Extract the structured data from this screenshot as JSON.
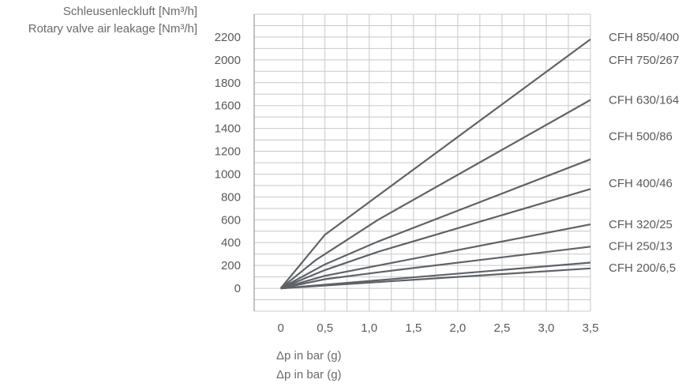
{
  "chart_data": {
    "type": "line",
    "ylabel": [
      "Schleusenleckluft [Nm³/h]",
      "Rotary valve air leakage [Nm³/h]"
    ],
    "xlabel": [
      "Δp in bar (g)",
      "Δp in bar (g)"
    ],
    "xlim": [
      -0.3,
      3.5
    ],
    "ylim": [
      -200,
      2400
    ],
    "x_ticks": [
      0,
      0.5,
      1.0,
      1.5,
      2.0,
      2.5,
      3.0,
      3.5
    ],
    "x_tick_labels": [
      "0",
      "0,5",
      "1,0",
      "1,5",
      "2,0",
      "2,5",
      "3,0",
      "3,5"
    ],
    "y_ticks": [
      0,
      200,
      400,
      600,
      800,
      1000,
      1200,
      1400,
      1600,
      1800,
      2000,
      2200
    ],
    "y_tick_labels": [
      "0",
      "200",
      "400",
      "600",
      "800",
      "1000",
      "1200",
      "1400",
      "1600",
      "1800",
      "2000",
      "2200"
    ],
    "grid": true,
    "line_color": "#5f6368",
    "grid_color": "#c8c8c8",
    "series": [
      {
        "name": "CFH 850/400",
        "x": [
          0,
          0.5,
          3.5
        ],
        "y": [
          0,
          470,
          2180
        ]
      },
      {
        "name": "CFH 750/267",
        "x": [
          0,
          0.4,
          1.1,
          3.5
        ],
        "y": [
          0,
          250,
          600,
          1650
        ]
      },
      {
        "name": "CFH 630/164",
        "x": [
          0,
          0.5,
          1.1,
          3.5
        ],
        "y": [
          0,
          210,
          410,
          1130
        ]
      },
      {
        "name": "CFH 500/86",
        "x": [
          0,
          0.5,
          1.1,
          3.5
        ],
        "y": [
          0,
          160,
          320,
          870
        ]
      },
      {
        "name": "CFH 400/46",
        "x": [
          0,
          0.5,
          1.1,
          3.5
        ],
        "y": [
          0,
          110,
          200,
          560
        ]
      },
      {
        "name": "CFH 320/25",
        "x": [
          0,
          0.5,
          1.1,
          3.5
        ],
        "y": [
          0,
          80,
          140,
          365
        ]
      },
      {
        "name": "CFH 250/13",
        "x": [
          0,
          3.5
        ],
        "y": [
          0,
          225
        ]
      },
      {
        "name": "CFH 200/6,5",
        "x": [
          0,
          3.5
        ],
        "y": [
          0,
          175
        ]
      }
    ],
    "series_labels": [
      {
        "text": "CFH 850/400",
        "y": 2200
      },
      {
        "text": "CFH 750/267",
        "y": 2000
      },
      {
        "text": "CFH 630/164",
        "y": 1650
      },
      {
        "text": "CFH 500/86",
        "y": 1330
      },
      {
        "text": "CFH 400/46",
        "y": 920
      },
      {
        "text": "CFH 320/25",
        "y": 560
      },
      {
        "text": "CFH 250/13",
        "y": 370
      },
      {
        "text": "CFH 200/6,5",
        "y": 180
      }
    ]
  }
}
